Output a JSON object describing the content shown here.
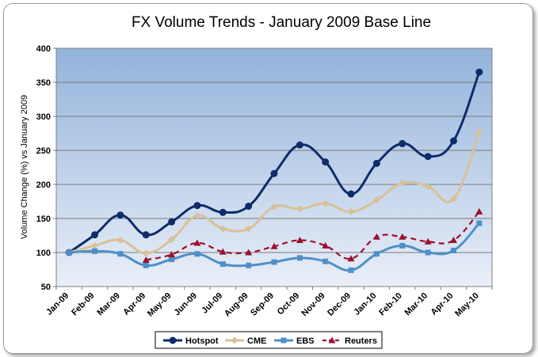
{
  "chart_data": {
    "type": "line",
    "title": "FX Volume Trends - January 2009 Base Line",
    "xlabel": "",
    "ylabel": "Volume Change (%) vs January 2009",
    "ylim": [
      50,
      400
    ],
    "yticks": [
      50,
      100,
      150,
      200,
      250,
      300,
      350,
      400
    ],
    "grid": true,
    "legend_position": "bottom",
    "categories": [
      "Jan-09",
      "Feb-09",
      "Mar-09",
      "Apr-09",
      "May-09",
      "Jun-09",
      "Jul-09",
      "Aug-09",
      "Sep-09",
      "Oct-09",
      "Nov-09",
      "Dec-09",
      "Jan-10",
      "Feb-10",
      "Mar-10",
      "Apr-10",
      "May-10"
    ],
    "series": [
      {
        "name": "Hotspot",
        "color": "#0e2c6b",
        "marker": "circle",
        "dash": "solid",
        "values": [
          100,
          126,
          155,
          126,
          145,
          169,
          159,
          168,
          216,
          258,
          233,
          186,
          231,
          260,
          241,
          264,
          365
        ]
      },
      {
        "name": "CME",
        "color": "#d8c199",
        "marker": "diamond",
        "dash": "solid",
        "values": [
          100,
          110,
          118,
          99,
          119,
          154,
          135,
          135,
          167,
          164,
          172,
          160,
          177,
          202,
          197,
          179,
          277
        ]
      },
      {
        "name": "EBS",
        "color": "#4f8fc8",
        "marker": "square",
        "dash": "solid",
        "values": [
          100,
          102,
          98,
          81,
          90,
          98,
          83,
          81,
          86,
          92,
          87,
          74,
          98,
          110,
          100,
          103,
          143
        ]
      },
      {
        "name": "Reuters",
        "color": "#9c1030",
        "marker": "triangle",
        "dash": "dashed",
        "values": [
          null,
          null,
          null,
          89,
          97,
          114,
          101,
          100,
          109,
          118,
          110,
          91,
          123,
          123,
          116,
          118,
          160
        ]
      }
    ]
  }
}
